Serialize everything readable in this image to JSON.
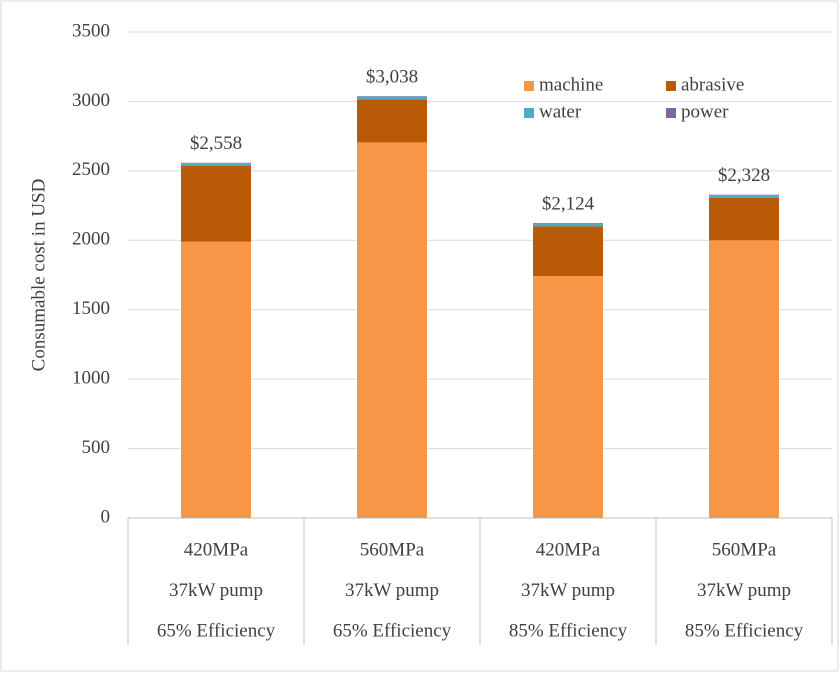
{
  "chart_data": {
    "type": "stacked_bar",
    "y_label": "Consumable cost in USD",
    "categories": [
      [
        "420MPa",
        "37kW pump",
        "65% Efficiency"
      ],
      [
        "560MPa",
        "37kW pump",
        "65% Efficiency"
      ],
      [
        "420MPa",
        "37kW pump",
        "85% Efficiency"
      ],
      [
        "560MPa",
        "37kW pump",
        "85% Efficiency"
      ]
    ],
    "series": [
      {
        "name": "machine",
        "color": "#f79646",
        "values": [
          1990,
          2705,
          1742,
          2000
        ]
      },
      {
        "name": "abrasive",
        "color": "#b85a06",
        "values": [
          545,
          310,
          359,
          305
        ]
      },
      {
        "name": "water",
        "color": "#4bacc6",
        "values": [
          20,
          20,
          20,
          20
        ]
      },
      {
        "name": "power",
        "color": "#8064a2",
        "values": [
          3,
          3,
          3,
          3
        ]
      }
    ],
    "totals": [
      2558,
      3038,
      2124,
      2328
    ],
    "total_labels": [
      "$2,558",
      "$3,038",
      "$2,124",
      "$2,328"
    ],
    "ylim": [
      0,
      3500
    ],
    "yticks": [
      0,
      500,
      1000,
      1500,
      2000,
      2500,
      3000,
      3500
    ],
    "grid": true,
    "legend": "upper-right"
  }
}
